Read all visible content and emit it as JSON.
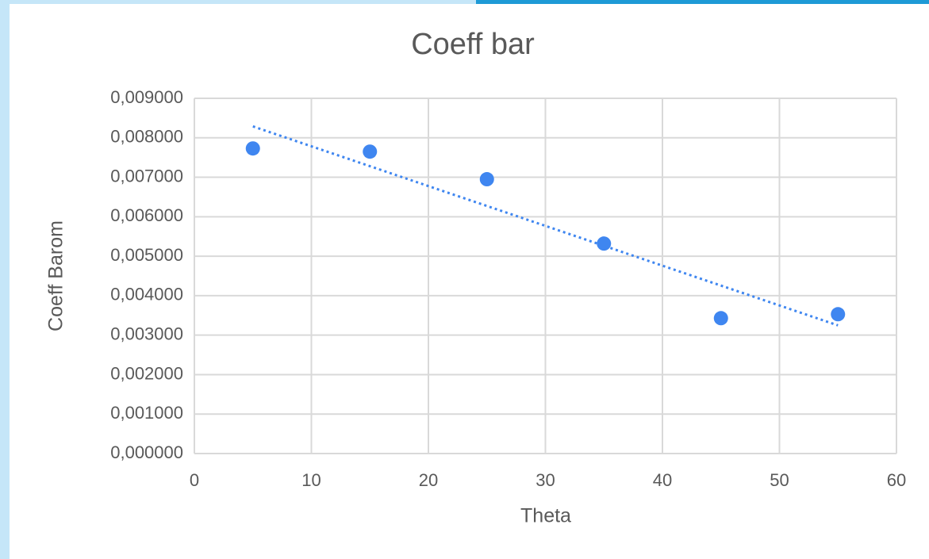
{
  "chart_data": {
    "type": "scatter",
    "title": "Coeff bar",
    "x_label": "Theta",
    "y_label": "Coeff Barom",
    "series": [
      {
        "name": "Coeff bar",
        "color": "#3f86f0",
        "x": [
          5,
          15,
          25,
          35,
          45,
          55
        ],
        "values": [
          0.00773,
          0.00765,
          0.00695,
          0.00532,
          0.00343,
          0.00353
        ]
      }
    ],
    "trendline": "linear",
    "xlim": [
      0,
      60
    ],
    "xticks": [
      0,
      10,
      20,
      30,
      40,
      50,
      60
    ],
    "ylim": [
      0,
      0.009
    ],
    "yticks": [
      {
        "value": 0,
        "label": "0,000000"
      },
      {
        "value": 0.001,
        "label": "0,001000"
      },
      {
        "value": 0.002,
        "label": "0,002000"
      },
      {
        "value": 0.003,
        "label": "0,003000"
      },
      {
        "value": 0.004,
        "label": "0,004000"
      },
      {
        "value": 0.005,
        "label": "0,005000"
      },
      {
        "value": 0.006,
        "label": "0,006000"
      },
      {
        "value": 0.007,
        "label": "0,007000"
      },
      {
        "value": 0.008,
        "label": "0,008000"
      },
      {
        "value": 0.009,
        "label": "0,009000"
      }
    ],
    "grid": true
  }
}
